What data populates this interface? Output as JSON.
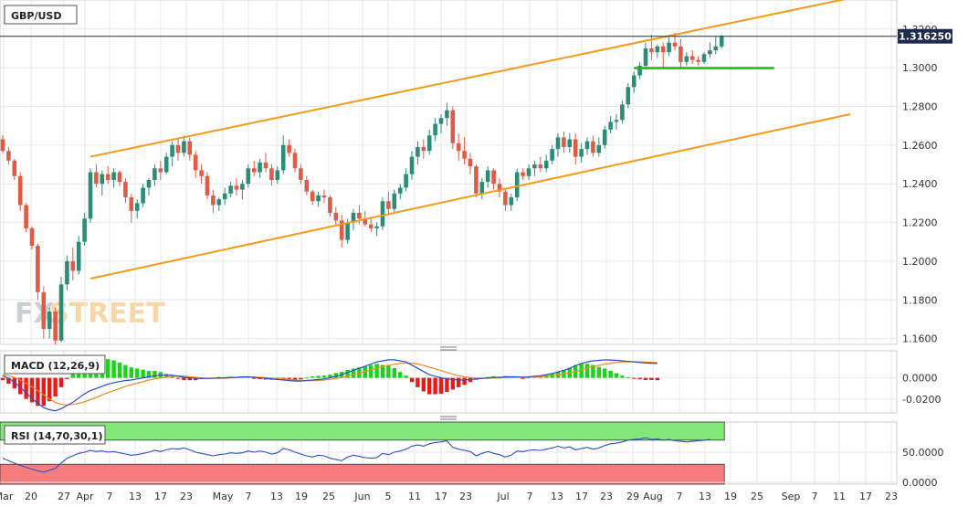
{
  "chart_data": {
    "type": "candlestick",
    "title": "GBP/USD",
    "watermark": {
      "left": "FX",
      "right": "STREET"
    },
    "last_price_label": "1.316250",
    "last_price": 1.31625,
    "price_ticks": [
      "1.1600",
      "1.1800",
      "1.2000",
      "1.2200",
      "1.2400",
      "1.2600",
      "1.2800",
      "1.3000",
      "1.3200"
    ],
    "price_range": [
      1.157,
      1.335
    ],
    "x_ticks": [
      "Mar",
      "20",
      "27",
      "Apr",
      "7",
      "13",
      "17",
      "23",
      "May",
      "7",
      "13",
      "19",
      "25",
      "Jun",
      "5",
      "11",
      "17",
      "23",
      "Jul",
      "7",
      "13",
      "17",
      "23",
      "29",
      "Aug",
      "7",
      "13",
      "19",
      "25",
      "Sep",
      "7",
      "11",
      "17",
      "23"
    ],
    "colors": {
      "up": "#2e8b78",
      "down": "#e05a45",
      "channel": "#f59a1b",
      "support": "#22b31c",
      "macd": "#2a4fcc",
      "signal": "#f08a24",
      "grid": "#e6e6e6"
    },
    "candles_ohlc": [
      [
        1.263,
        1.265,
        1.256,
        1.257
      ],
      [
        1.257,
        1.259,
        1.25,
        1.252
      ],
      [
        1.252,
        1.253,
        1.242,
        1.244
      ],
      [
        1.244,
        1.246,
        1.226,
        1.229
      ],
      [
        1.229,
        1.23,
        1.215,
        1.217
      ],
      [
        1.217,
        1.218,
        1.206,
        1.208
      ],
      [
        1.208,
        1.209,
        1.18,
        1.184
      ],
      [
        1.184,
        1.187,
        1.16,
        1.165
      ],
      [
        1.165,
        1.176,
        1.16,
        1.174
      ],
      [
        1.174,
        1.176,
        1.157,
        1.159
      ],
      [
        1.159,
        1.192,
        1.158,
        1.188
      ],
      [
        1.188,
        1.203,
        1.185,
        1.2
      ],
      [
        1.2,
        1.207,
        1.19,
        1.195
      ],
      [
        1.195,
        1.213,
        1.193,
        1.21
      ],
      [
        1.21,
        1.225,
        1.208,
        1.222
      ],
      [
        1.222,
        1.248,
        1.22,
        1.246
      ],
      [
        1.246,
        1.25,
        1.238,
        1.24
      ],
      [
        1.24,
        1.247,
        1.234,
        1.245
      ],
      [
        1.245,
        1.249,
        1.24,
        1.242
      ],
      [
        1.242,
        1.248,
        1.238,
        1.246
      ],
      [
        1.246,
        1.247,
        1.239,
        1.241
      ],
      [
        1.241,
        1.243,
        1.23,
        1.233
      ],
      [
        1.233,
        1.235,
        1.22,
        1.226
      ],
      [
        1.226,
        1.232,
        1.222,
        1.23
      ],
      [
        1.23,
        1.24,
        1.228,
        1.238
      ],
      [
        1.238,
        1.243,
        1.234,
        1.242
      ],
      [
        1.242,
        1.25,
        1.239,
        1.248
      ],
      [
        1.248,
        1.252,
        1.242,
        1.246
      ],
      [
        1.246,
        1.256,
        1.245,
        1.254
      ],
      [
        1.254,
        1.262,
        1.249,
        1.26
      ],
      [
        1.26,
        1.264,
        1.252,
        1.256
      ],
      [
        1.256,
        1.265,
        1.254,
        1.262
      ],
      [
        1.262,
        1.264,
        1.252,
        1.255
      ],
      [
        1.255,
        1.257,
        1.243,
        1.247
      ],
      [
        1.247,
        1.25,
        1.24,
        1.244
      ],
      [
        1.244,
        1.246,
        1.232,
        1.234
      ],
      [
        1.234,
        1.237,
        1.225,
        1.229
      ],
      [
        1.229,
        1.233,
        1.226,
        1.232
      ],
      [
        1.232,
        1.238,
        1.229,
        1.235
      ],
      [
        1.235,
        1.241,
        1.233,
        1.239
      ],
      [
        1.239,
        1.243,
        1.234,
        1.237
      ],
      [
        1.237,
        1.242,
        1.232,
        1.24
      ],
      [
        1.24,
        1.25,
        1.238,
        1.248
      ],
      [
        1.248,
        1.252,
        1.244,
        1.246
      ],
      [
        1.246,
        1.253,
        1.243,
        1.251
      ],
      [
        1.251,
        1.256,
        1.246,
        1.248
      ],
      [
        1.248,
        1.25,
        1.239,
        1.242
      ],
      [
        1.242,
        1.249,
        1.24,
        1.247
      ],
      [
        1.247,
        1.265,
        1.245,
        1.26
      ],
      [
        1.26,
        1.263,
        1.254,
        1.256
      ],
      [
        1.256,
        1.258,
        1.246,
        1.248
      ],
      [
        1.248,
        1.25,
        1.24,
        1.242
      ],
      [
        1.242,
        1.244,
        1.234,
        1.236
      ],
      [
        1.236,
        1.237,
        1.229,
        1.231
      ],
      [
        1.231,
        1.236,
        1.228,
        1.234
      ],
      [
        1.234,
        1.237,
        1.23,
        1.233
      ],
      [
        1.233,
        1.234,
        1.223,
        1.225
      ],
      [
        1.225,
        1.228,
        1.218,
        1.221
      ],
      [
        1.221,
        1.224,
        1.207,
        1.211
      ],
      [
        1.211,
        1.222,
        1.209,
        1.22
      ],
      [
        1.22,
        1.227,
        1.216,
        1.225
      ],
      [
        1.225,
        1.229,
        1.219,
        1.222
      ],
      [
        1.222,
        1.226,
        1.218,
        1.219
      ],
      [
        1.219,
        1.223,
        1.215,
        1.217
      ],
      [
        1.217,
        1.22,
        1.213,
        1.218
      ],
      [
        1.218,
        1.233,
        1.216,
        1.231
      ],
      [
        1.231,
        1.236,
        1.224,
        1.227
      ],
      [
        1.227,
        1.237,
        1.225,
        1.235
      ],
      [
        1.235,
        1.24,
        1.232,
        1.238
      ],
      [
        1.238,
        1.248,
        1.236,
        1.245
      ],
      [
        1.245,
        1.257,
        1.242,
        1.254
      ],
      [
        1.254,
        1.262,
        1.25,
        1.259
      ],
      [
        1.259,
        1.263,
        1.253,
        1.257
      ],
      [
        1.257,
        1.268,
        1.255,
        1.265
      ],
      [
        1.265,
        1.274,
        1.262,
        1.271
      ],
      [
        1.271,
        1.276,
        1.266,
        1.274
      ],
      [
        1.274,
        1.282,
        1.27,
        1.278
      ],
      [
        1.278,
        1.28,
        1.258,
        1.261
      ],
      [
        1.261,
        1.266,
        1.252,
        1.257
      ],
      [
        1.257,
        1.264,
        1.25,
        1.253
      ],
      [
        1.253,
        1.256,
        1.245,
        1.249
      ],
      [
        1.249,
        1.25,
        1.233,
        1.235
      ],
      [
        1.235,
        1.243,
        1.232,
        1.241
      ],
      [
        1.241,
        1.249,
        1.238,
        1.247
      ],
      [
        1.247,
        1.248,
        1.237,
        1.24
      ],
      [
        1.24,
        1.243,
        1.233,
        1.236
      ],
      [
        1.236,
        1.238,
        1.226,
        1.229
      ],
      [
        1.229,
        1.235,
        1.226,
        1.233
      ],
      [
        1.233,
        1.248,
        1.231,
        1.246
      ],
      [
        1.246,
        1.248,
        1.242,
        1.244
      ],
      [
        1.244,
        1.25,
        1.242,
        1.248
      ],
      [
        1.248,
        1.252,
        1.244,
        1.25
      ],
      [
        1.25,
        1.254,
        1.246,
        1.248
      ],
      [
        1.248,
        1.255,
        1.246,
        1.252
      ],
      [
        1.252,
        1.26,
        1.25,
        1.258
      ],
      [
        1.258,
        1.266,
        1.254,
        1.264
      ],
      [
        1.264,
        1.267,
        1.256,
        1.259
      ],
      [
        1.259,
        1.266,
        1.256,
        1.263
      ],
      [
        1.263,
        1.266,
        1.25,
        1.254
      ],
      [
        1.254,
        1.261,
        1.251,
        1.258
      ],
      [
        1.258,
        1.264,
        1.255,
        1.262
      ],
      [
        1.262,
        1.265,
        1.254,
        1.256
      ],
      [
        1.256,
        1.264,
        1.254,
        1.26
      ],
      [
        1.26,
        1.27,
        1.258,
        1.268
      ],
      [
        1.268,
        1.275,
        1.266,
        1.272
      ],
      [
        1.272,
        1.276,
        1.268,
        1.273
      ],
      [
        1.273,
        1.283,
        1.271,
        1.281
      ],
      [
        1.281,
        1.292,
        1.279,
        1.29
      ],
      [
        1.29,
        1.298,
        1.287,
        1.296
      ],
      [
        1.296,
        1.303,
        1.294,
        1.301
      ],
      [
        1.301,
        1.313,
        1.299,
        1.31
      ],
      [
        1.31,
        1.317,
        1.304,
        1.308
      ],
      [
        1.308,
        1.312,
        1.305,
        1.311
      ],
      [
        1.311,
        1.313,
        1.3,
        1.308
      ],
      [
        1.308,
        1.316,
        1.306,
        1.313
      ],
      [
        1.313,
        1.318,
        1.309,
        1.311
      ],
      [
        1.311,
        1.315,
        1.3,
        1.303
      ],
      [
        1.303,
        1.308,
        1.301,
        1.306
      ],
      [
        1.306,
        1.309,
        1.302,
        1.304
      ],
      [
        1.304,
        1.306,
        1.301,
        1.303
      ],
      [
        1.303,
        1.308,
        1.302,
        1.307
      ],
      [
        1.307,
        1.313,
        1.305,
        1.309
      ],
      [
        1.309,
        1.316,
        1.307,
        1.311
      ],
      [
        1.311,
        1.317,
        1.31,
        1.31625
      ]
    ],
    "channel_upper": [
      [
        15,
        1.254
      ],
      [
        145,
        1.336
      ]
    ],
    "channel_lower": [
      [
        15,
        1.191
      ],
      [
        145,
        1.276
      ]
    ],
    "support_line": [
      [
        108,
        1.2998
      ],
      [
        132,
        1.2998
      ]
    ],
    "macd": {
      "label": "MACD (12,26,9)",
      "ticks": [
        "0.0000",
        "-0.0200"
      ],
      "range": [
        -0.033,
        0.0255
      ],
      "macd_values": [
        0.002,
        -0.0005,
        -0.004,
        -0.009,
        -0.014,
        -0.019,
        -0.024,
        -0.028,
        -0.03,
        -0.031,
        -0.029,
        -0.026,
        -0.023,
        -0.019,
        -0.015,
        -0.012,
        -0.01,
        -0.008,
        -0.006,
        -0.0045,
        -0.0035,
        -0.0025,
        -0.002,
        -0.001,
        0.0,
        0.001,
        0.002,
        0.0025,
        0.0025,
        0.0025,
        0.0015,
        0.0005,
        0.0,
        -0.0005,
        -0.0005,
        -0.0005,
        -0.0005,
        0.0,
        0.0,
        0.0005,
        0.0005,
        0.001,
        0.001,
        0.0005,
        0.0,
        -0.0005,
        -0.001,
        -0.0015,
        -0.002,
        -0.0025,
        -0.003,
        -0.003,
        -0.0025,
        -0.002,
        -0.0015,
        -0.001,
        0.0,
        0.0015,
        0.003,
        0.005,
        0.007,
        0.009,
        0.011,
        0.013,
        0.015,
        0.016,
        0.017,
        0.017,
        0.016,
        0.015,
        0.012,
        0.009,
        0.006,
        0.003,
        0.0015,
        0.0,
        -0.001,
        -0.0015,
        -0.002,
        -0.002,
        -0.0015,
        -0.001,
        -0.0005,
        0.0,
        0.0005,
        0.0005,
        0.001,
        0.001,
        0.001,
        0.0005,
        0.001,
        0.0015,
        0.002,
        0.003,
        0.004,
        0.0055,
        0.007,
        0.009,
        0.0115,
        0.0135,
        0.015,
        0.016,
        0.0165,
        0.017,
        0.0168,
        0.0165,
        0.016,
        0.0155,
        0.015,
        0.0145,
        0.014,
        0.0138,
        0.0135
      ],
      "signal_values": [
        0.003,
        0.002,
        0.0005,
        -0.002,
        -0.005,
        -0.0085,
        -0.012,
        -0.016,
        -0.02,
        -0.023,
        -0.025,
        -0.0255,
        -0.025,
        -0.024,
        -0.0225,
        -0.0205,
        -0.0185,
        -0.016,
        -0.014,
        -0.012,
        -0.01,
        -0.008,
        -0.0065,
        -0.005,
        -0.0035,
        -0.002,
        -0.001,
        0.0,
        0.0008,
        0.0014,
        0.0018,
        0.0015,
        0.001,
        0.0005,
        0.0,
        -0.0003,
        -0.0004,
        -0.0004,
        -0.0003,
        0.0,
        0.0002,
        0.0004,
        0.0006,
        0.0006,
        0.0005,
        0.0002,
        -0.0002,
        -0.0006,
        -0.001,
        -0.0015,
        -0.002,
        -0.0024,
        -0.0026,
        -0.0026,
        -0.0024,
        -0.002,
        -0.0014,
        -0.0006,
        0.0004,
        0.0016,
        0.003,
        0.0045,
        0.006,
        0.0075,
        0.009,
        0.0105,
        0.0118,
        0.0128,
        0.0135,
        0.014,
        0.0138,
        0.013,
        0.0118,
        0.01,
        0.0085,
        0.0068,
        0.005,
        0.0035,
        0.002,
        0.001,
        0.0003,
        -0.0002,
        -0.0004,
        -0.0004,
        -0.0002,
        0.0,
        0.0002,
        0.0004,
        0.0006,
        0.0006,
        0.0007,
        0.0009,
        0.0011,
        0.0015,
        0.002,
        0.0028,
        0.0036,
        0.0047,
        0.006,
        0.0075,
        0.009,
        0.0105,
        0.0118,
        0.013,
        0.0138,
        0.0145,
        0.015,
        0.0152,
        0.0152,
        0.0151,
        0.0149,
        0.0147,
        0.0145
      ]
    },
    "rsi": {
      "label": "RSI (14,70,30,1)",
      "ticks": [
        "50.0000",
        "0.0000"
      ],
      "range": [
        -3,
        100
      ],
      "overbought": 70,
      "oversold": 30,
      "values": [
        40,
        36,
        32,
        28,
        25,
        22,
        19,
        17,
        20,
        23,
        32,
        40,
        44,
        48,
        50,
        53,
        51,
        52,
        50,
        51,
        49,
        47,
        45,
        46,
        48,
        50,
        53,
        51,
        54,
        56,
        55,
        57,
        54,
        50,
        48,
        46,
        44,
        46,
        47,
        49,
        48,
        49,
        52,
        50,
        52,
        50,
        47,
        49,
        56,
        54,
        50,
        47,
        44,
        42,
        45,
        44,
        40,
        38,
        36,
        42,
        45,
        43,
        41,
        40,
        41,
        48,
        46,
        50,
        52,
        55,
        60,
        62,
        60,
        64,
        66,
        67,
        69,
        58,
        55,
        53,
        51,
        44,
        48,
        51,
        48,
        46,
        42,
        45,
        52,
        51,
        53,
        54,
        53,
        55,
        57,
        60,
        57,
        59,
        54,
        56,
        58,
        55,
        57,
        61,
        64,
        65,
        67,
        70,
        71,
        72,
        74,
        71,
        72,
        70,
        71,
        69,
        68,
        67,
        68,
        69,
        70,
        71
      ]
    }
  }
}
